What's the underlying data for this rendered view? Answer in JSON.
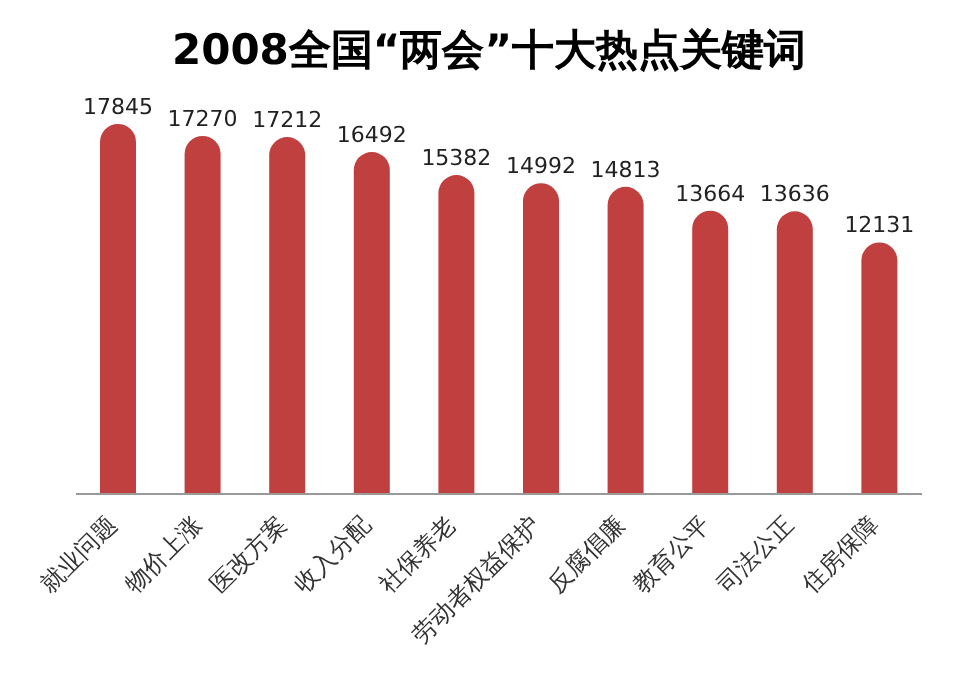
{
  "chart_data": {
    "type": "bar",
    "title": "2008全国“两会”十大热点关键词",
    "categories": [
      "就业问题",
      "物价上涨",
      "医改方案",
      "收入分配",
      "社保养老",
      "劳动者权益保护",
      "反腐倡廉",
      "教育公平",
      "司法公正",
      "住房保障"
    ],
    "values": [
      17845,
      17270,
      17212,
      16492,
      15382,
      14992,
      14813,
      13664,
      13636,
      12131
    ],
    "color": "#c0403f",
    "data_labels": true,
    "grid": false,
    "legend": false
  }
}
